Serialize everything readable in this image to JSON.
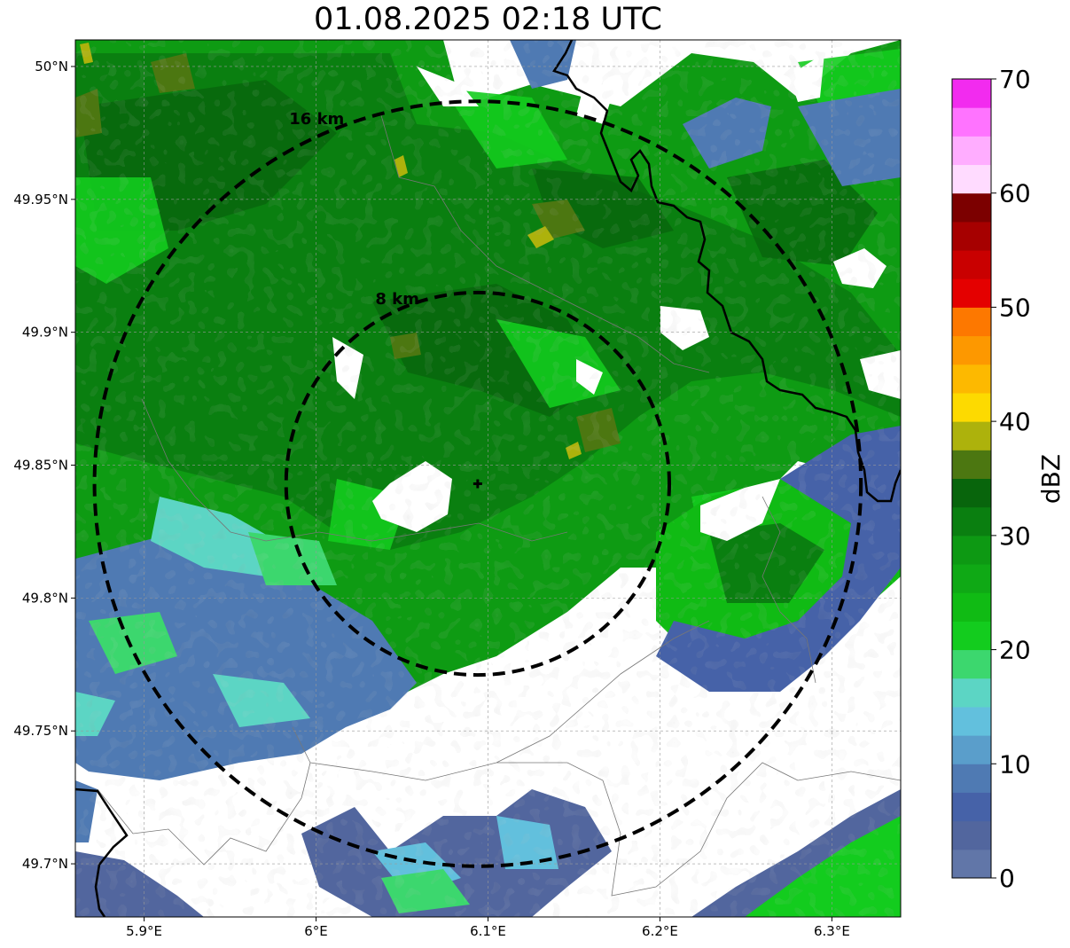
{
  "title": "01.08.2025 02:18 UTC",
  "map": {
    "lon_range": [
      5.86,
      6.34
    ],
    "lat_range": [
      49.68,
      50.01
    ],
    "x_ticks": [
      {
        "value": 5.9,
        "label": "5.9°E"
      },
      {
        "value": 6.0,
        "label": "6°E"
      },
      {
        "value": 6.1,
        "label": "6.1°E"
      },
      {
        "value": 6.2,
        "label": "6.2°E"
      },
      {
        "value": 6.3,
        "label": "6.3°E"
      }
    ],
    "y_ticks": [
      {
        "value": 50.0,
        "label": "50°N"
      },
      {
        "value": 49.95,
        "label": "49.95°N"
      },
      {
        "value": 49.9,
        "label": "49.9°N"
      },
      {
        "value": 49.85,
        "label": "49.85°N"
      },
      {
        "value": 49.8,
        "label": "49.8°N"
      },
      {
        "value": 49.75,
        "label": "49.75°N"
      },
      {
        "value": 49.7,
        "label": "49.7°N"
      }
    ],
    "radar_center": {
      "lon": 6.094,
      "lat": 49.843
    },
    "range_rings": [
      {
        "label": "8 km",
        "radius_km": 8
      },
      {
        "label": "16 km",
        "radius_km": 16
      }
    ],
    "grid": true
  },
  "colorbar": {
    "label": "dBZ",
    "min": 0,
    "max": 70,
    "step": 2.5,
    "tick_labels": [
      "0",
      "10",
      "20",
      "30",
      "40",
      "50",
      "60",
      "70"
    ],
    "colors": [
      "#6176a8",
      "#52669e",
      "#4662a8",
      "#4f7ab3",
      "#5a9ecb",
      "#62c0dd",
      "#5cd5c4",
      "#3cd76e",
      "#13cc1e",
      "#10bb14",
      "#0fa915",
      "#0d9913",
      "#0a7f10",
      "#08650c",
      "#4c7711",
      "#adb20c",
      "#fdda00",
      "#fdb900",
      "#fd9800",
      "#fd7800",
      "#e40000",
      "#c90000",
      "#a60000",
      "#7c0000",
      "#ffdbff",
      "#ffadff",
      "#ff73ff",
      "#f22bef"
    ]
  }
}
